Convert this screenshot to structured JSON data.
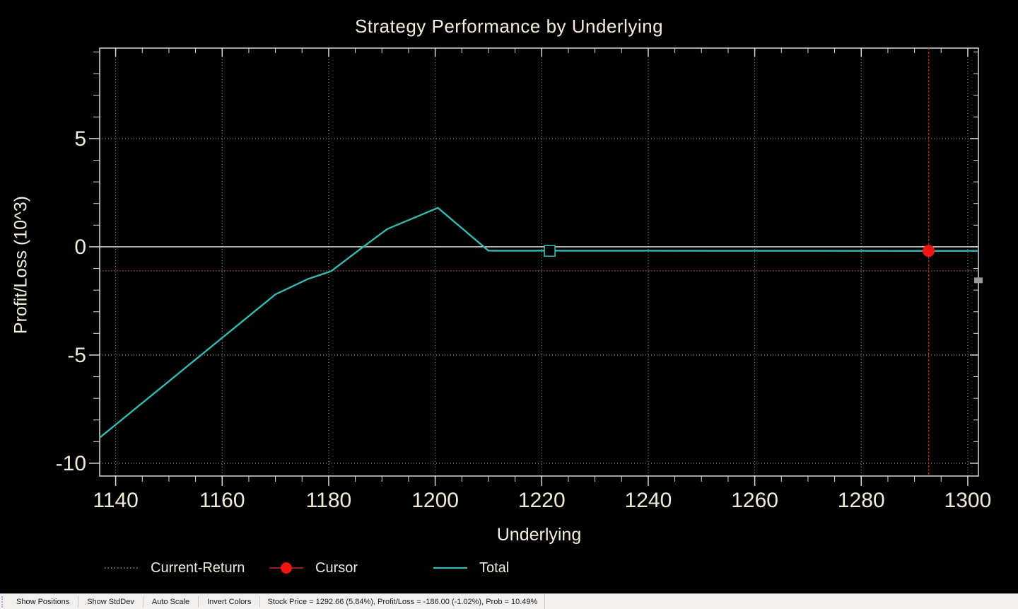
{
  "title": "Strategy Performance by Underlying",
  "colors": {
    "background": "#000000",
    "axis": "#d8d8d8",
    "text": "#f4eedd",
    "grid": "#bdbdbd",
    "total_line": "#35b8b0",
    "current_return_line": "#a05555",
    "cursor_red": "#ee1515",
    "cursor_vline": "#b02525",
    "statusbar_bg": "#f1f0ee"
  },
  "chart_data": {
    "type": "line",
    "title": "Strategy Performance by Underlying",
    "xlabel": "Underlying",
    "ylabel": "Profit/Loss (10^3)",
    "xlim": [
      1137,
      1302
    ],
    "ylim": [
      -10.59,
      9.18
    ],
    "x_major_ticks": [
      1140,
      1160,
      1180,
      1200,
      1220,
      1240,
      1260,
      1280,
      1300
    ],
    "x_major_tick_labels": [
      "1140",
      "1160",
      "1180",
      "1200",
      "1220",
      "1240",
      "1260",
      "1280",
      "1300"
    ],
    "x_minor_step": 5,
    "y_major_ticks": [
      5,
      0,
      -5,
      -10
    ],
    "y_major_tick_labels": [
      "5",
      "0",
      "-5",
      "-10"
    ],
    "y_minor_step": 1,
    "grid": {
      "vertical_at_x_majors": true,
      "horizontal_dotted_at": [
        5,
        -5,
        -10
      ],
      "solid_white_at": 0
    },
    "series": [
      {
        "name": "Total",
        "style": "solid",
        "color": "#35b8b0",
        "points": [
          [
            1137,
            -8.82
          ],
          [
            1170,
            -2.2
          ],
          [
            1176,
            -1.5
          ],
          [
            1180.5,
            -1.12
          ],
          [
            1186.5,
            0
          ],
          [
            1191,
            0.82
          ],
          [
            1200.5,
            1.8
          ],
          [
            1210,
            -0.18
          ],
          [
            1302,
            -0.19
          ]
        ]
      },
      {
        "name": "Current-Return",
        "style": "dotted-hline",
        "color": "#a05555",
        "y": -1.11
      },
      {
        "name": "Cursor",
        "style": "vline-with-dot",
        "color": "#ee1515",
        "x": 1292.66,
        "dot_y": -0.19
      }
    ],
    "annotations": [
      {
        "type": "square-marker",
        "x": 1221.5,
        "y": -0.19,
        "color": "#35b8b0"
      },
      {
        "type": "right-edge-notch",
        "y": -1.55,
        "color": "#9a9a9a"
      }
    ],
    "legend_position": "bottom"
  },
  "legend": {
    "items": [
      {
        "label": "Current-Return",
        "sample": "dotted-line"
      },
      {
        "label": "Cursor",
        "sample": "red-dot-on-line"
      },
      {
        "label": "Total",
        "sample": "cyan-line"
      }
    ]
  },
  "status_bar": {
    "buttons": [
      {
        "label": "Show Positions"
      },
      {
        "label": "Show StdDev"
      },
      {
        "label": "Auto Scale"
      },
      {
        "label": "Invert Colors"
      }
    ],
    "status_text": "Stock Price = 1292.66 (5.84%), Profit/Loss = -186.00 (-1.02%), Prob = 10.49%"
  }
}
